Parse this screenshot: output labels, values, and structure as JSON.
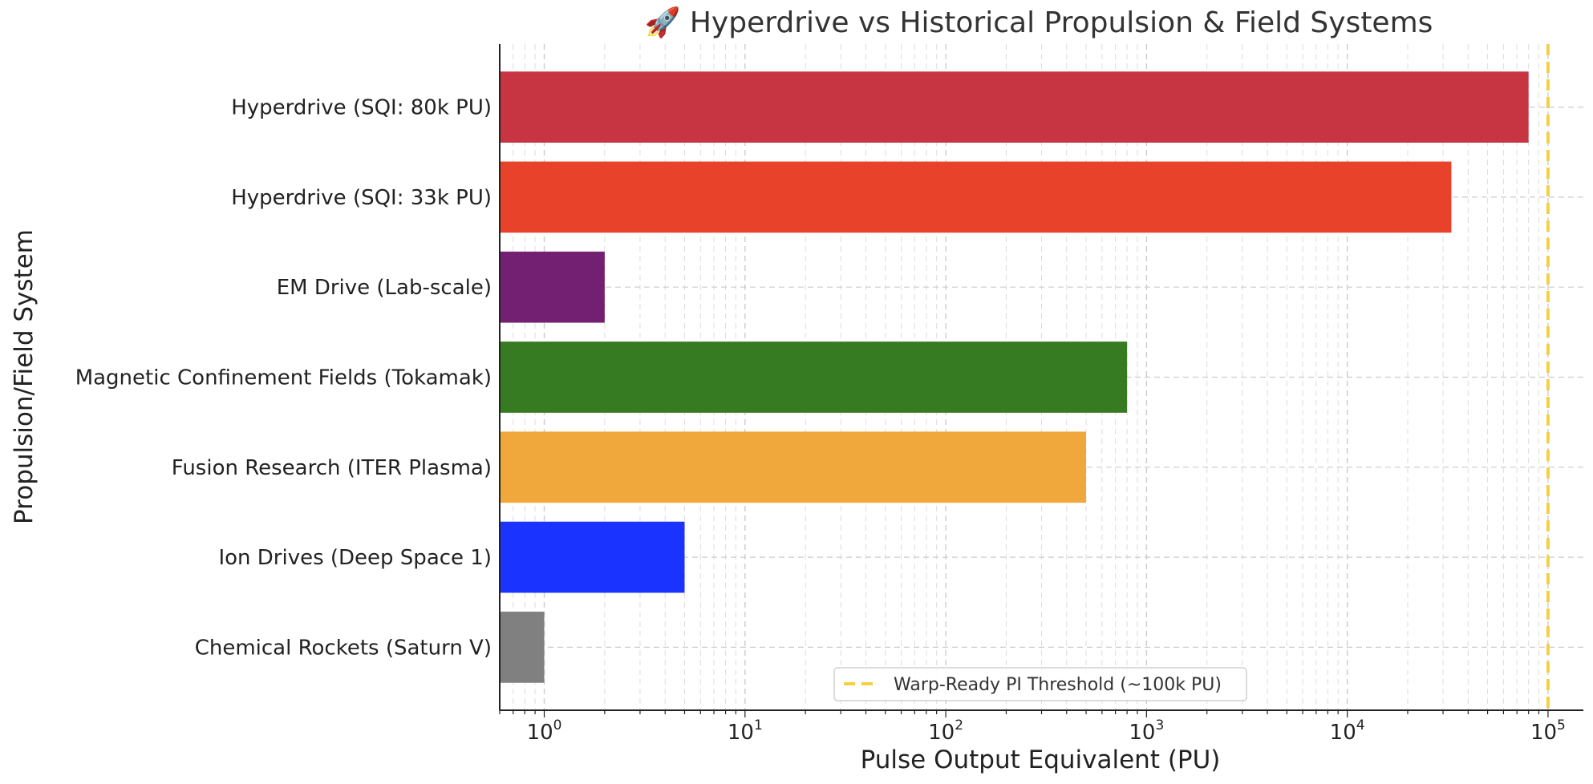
{
  "chart_data": {
    "type": "bar",
    "orientation": "horizontal",
    "title": "🚀 Hyperdrive vs Historical Propulsion & Field Systems",
    "xlabel": "Pulse Output Equivalent (PU)",
    "ylabel": "Propulsion/Field System",
    "x_scale": "log",
    "xlim": [
      0.6,
      150000
    ],
    "grid": true,
    "legend_position": "bottom-center",
    "x_ticks": [
      {
        "base": "10",
        "exp": "0",
        "value": 1
      },
      {
        "base": "10",
        "exp": "1",
        "value": 10
      },
      {
        "base": "10",
        "exp": "2",
        "value": 100
      },
      {
        "base": "10",
        "exp": "3",
        "value": 1000
      },
      {
        "base": "10",
        "exp": "4",
        "value": 10000
      },
      {
        "base": "10",
        "exp": "5",
        "value": 100000
      }
    ],
    "categories": [
      "Hyperdrive (SQI: 80k PU)",
      "Hyperdrive (SQI: 33k PU)",
      "EM Drive (Lab-scale)",
      "Magnetic Confinement Fields (Tokamak)",
      "Fusion Research (ITER Plasma)",
      "Ion Drives (Deep Space 1)",
      "Chemical Rockets (Saturn V)"
    ],
    "values": [
      80000,
      33000,
      2,
      800,
      500,
      5,
      1
    ],
    "colors": [
      "#c73542",
      "#e8432a",
      "#732072",
      "#367a21",
      "#f0a73c",
      "#1a33ff",
      "#808080"
    ],
    "reference_line": {
      "value": 100000,
      "label": "Warp-Ready PI Threshold (~100k PU)",
      "color": "#f5d142",
      "style": "dashed"
    }
  }
}
